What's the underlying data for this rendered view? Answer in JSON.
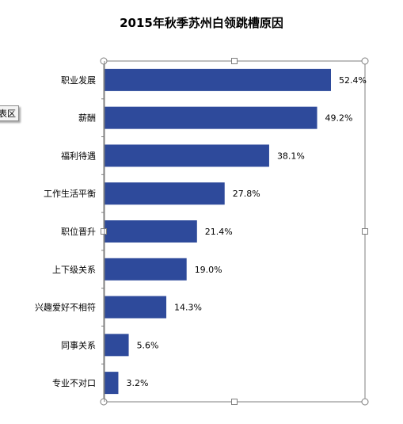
{
  "chart_data": {
    "type": "bar",
    "orientation": "horizontal",
    "title": "2015年秋季苏州白领跳槽原因",
    "categories": [
      "职业发展",
      "薪酬",
      "福利待遇",
      "工作生活平衡",
      "职位晋升",
      "上下级关系",
      "兴趣爱好不相符",
      "同事关系",
      "专业不对口"
    ],
    "values": [
      52.4,
      49.2,
      38.1,
      27.8,
      21.4,
      19.0,
      14.3,
      5.6,
      3.2
    ],
    "data_labels": [
      "52.4%",
      "49.2%",
      "38.1%",
      "27.8%",
      "21.4%",
      "19.0%",
      "14.3%",
      "5.6%",
      "3.2%"
    ],
    "xlim": [
      0,
      55
    ],
    "grid": false,
    "legend": "none",
    "bar_color": "#2e4a9b",
    "axis_color": "#7f7f7f",
    "frame_color": "#7f7f7f"
  },
  "tooltip": {
    "text": "表区"
  }
}
